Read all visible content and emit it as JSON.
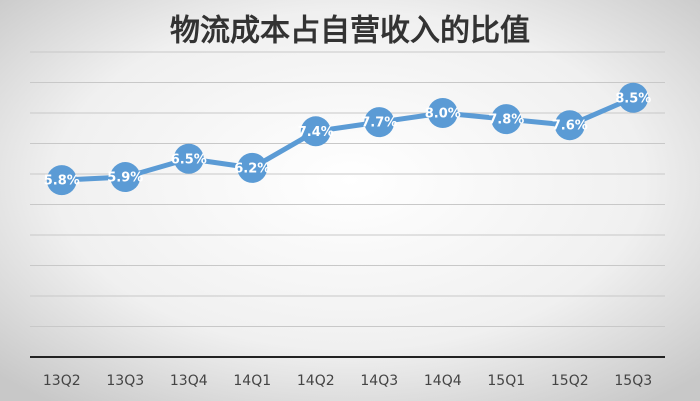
{
  "chart_data": {
    "type": "line",
    "title": "物流成本占自营收入的比值",
    "categories": [
      "13Q2",
      "13Q3",
      "13Q4",
      "14Q1",
      "14Q2",
      "14Q3",
      "14Q4",
      "15Q1",
      "15Q2",
      "15Q3"
    ],
    "values": [
      5.8,
      5.9,
      6.5,
      6.2,
      7.4,
      7.7,
      8.0,
      7.8,
      7.6,
      8.5
    ],
    "value_labels": [
      "5.8%",
      "5.9%",
      "6.5%",
      "6.2%",
      "7.4%",
      "7.7%",
      "8.0%",
      "7.8%",
      "7.6%",
      "8.5%"
    ],
    "color": "#5b9bd5",
    "ylim": [
      0,
      10
    ],
    "yticks": [
      0,
      1,
      2,
      3,
      4,
      5,
      6,
      7,
      8,
      9,
      10
    ],
    "grid": true
  }
}
